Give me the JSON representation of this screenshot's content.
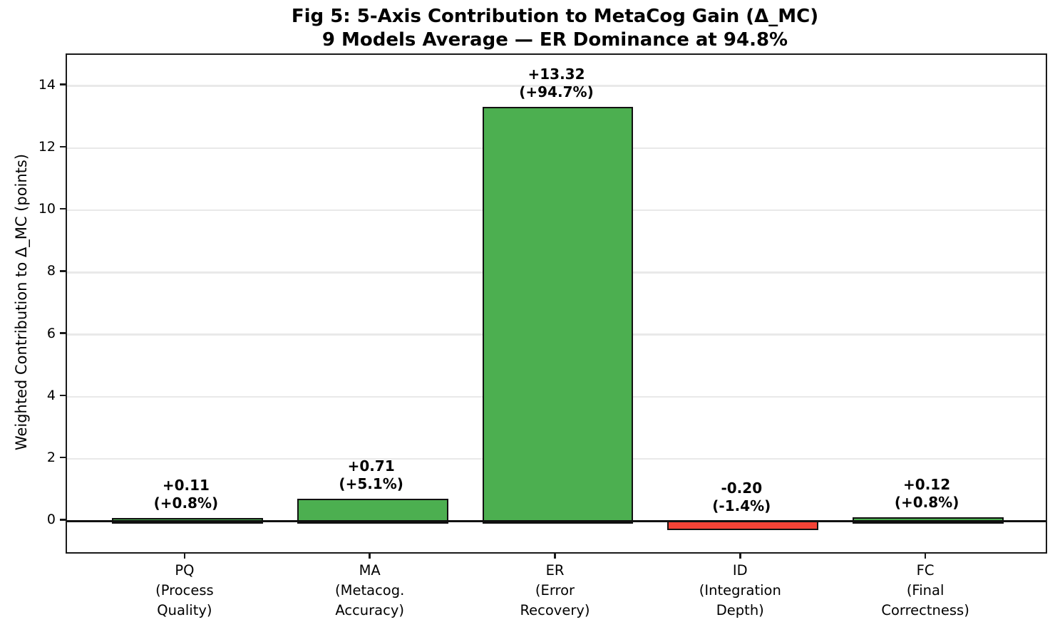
{
  "chart_data": {
    "type": "bar",
    "title": "Fig 5: 5-Axis Contribution to MetaCog Gain (Δ_MC)",
    "subtitle": "9 Models Average — ER Dominance at 94.8%",
    "ylabel": "Weighted Contribution to Δ_MC (points)",
    "xlabel": "",
    "categories": [
      {
        "code": "PQ",
        "label_lines": [
          "PQ",
          "(Process",
          "Quality)"
        ]
      },
      {
        "code": "MA",
        "label_lines": [
          "MA",
          "(Metacog.",
          "Accuracy)"
        ]
      },
      {
        "code": "ER",
        "label_lines": [
          "ER",
          "(Error",
          "Recovery)"
        ]
      },
      {
        "code": "ID",
        "label_lines": [
          "ID",
          "(Integration",
          "Depth)"
        ]
      },
      {
        "code": "FC",
        "label_lines": [
          "FC",
          "(Final",
          "Correctness)"
        ]
      }
    ],
    "values": [
      0.11,
      0.71,
      13.32,
      -0.2,
      0.12
    ],
    "value_labels": [
      "+0.11",
      "+0.71",
      "+13.32",
      "-0.20",
      "+0.12"
    ],
    "pct_labels": [
      "(+0.8%)",
      "(+5.1%)",
      "(+94.7%)",
      "(-1.4%)",
      "(+0.8%)"
    ],
    "yticks": [
      0,
      2,
      4,
      6,
      8,
      10,
      12,
      14
    ],
    "ylim": [
      -1,
      15
    ],
    "grid": true,
    "legend": "none",
    "colors": {
      "positive_bar": "#4caf50",
      "negative_bar": "#f44336",
      "bar_edge": "#111111",
      "grid_line": "#e9e9e9",
      "axis": "#1a1a1a",
      "zero_line": "#111111",
      "text": "#000000"
    }
  }
}
